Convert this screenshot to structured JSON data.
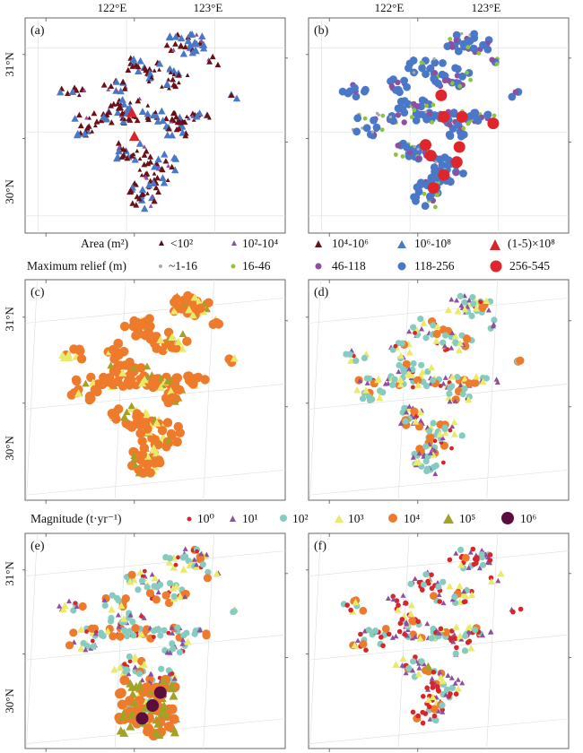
{
  "panels": [
    {
      "id": "a",
      "label": "(a)",
      "scheme": "area"
    },
    {
      "id": "b",
      "label": "(b)",
      "scheme": "relief"
    },
    {
      "id": "c",
      "label": "(c)",
      "scheme": "magA"
    },
    {
      "id": "d",
      "label": "(d)",
      "scheme": "magB"
    },
    {
      "id": "e",
      "label": "(e)",
      "scheme": "magC"
    },
    {
      "id": "f",
      "label": "(f)",
      "scheme": "magD"
    }
  ],
  "axes": {
    "lon_ticks": [
      "122°E",
      "123°E"
    ],
    "lat_ticks": [
      "31°N",
      "30°N"
    ]
  },
  "legend_area": {
    "title": "Area (m²)",
    "items": [
      {
        "label": "<10²",
        "shape": "triangle",
        "size": "small",
        "color": "#5a0f12"
      },
      {
        "label": "10²-10⁴",
        "shape": "triangle",
        "size": "small",
        "color": "#8e4fa0"
      },
      {
        "label": "10⁴-10⁶",
        "shape": "triangle",
        "size": "medium",
        "color": "#6b1016"
      },
      {
        "label": "10⁶-10⁸",
        "shape": "triangle",
        "size": "medium",
        "color": "#4a78c8"
      },
      {
        "label": "(1-5)×10⁸",
        "shape": "triangle",
        "size": "large",
        "color": "#d6262b"
      }
    ]
  },
  "legend_relief": {
    "title": "Maximum relief (m)",
    "items": [
      {
        "label": "~1-16",
        "shape": "circle",
        "size": "tiny",
        "color": "#a9a9a9"
      },
      {
        "label": "16-46",
        "shape": "circle",
        "size": "small",
        "color": "#8cc43f"
      },
      {
        "label": "46-118",
        "shape": "circle",
        "size": "medium",
        "color": "#8e4fa0"
      },
      {
        "label": "118-256",
        "shape": "circle",
        "size": "medium",
        "color": "#4a78c8"
      },
      {
        "label": "256-545",
        "shape": "circle",
        "size": "large",
        "color": "#e0262b"
      }
    ]
  },
  "legend_magnitude": {
    "title": "Magnitude (t·yr⁻¹)",
    "items": [
      {
        "label": "10⁰",
        "shape": "circle",
        "color": "#d6262b"
      },
      {
        "label": "10¹",
        "shape": "triangle",
        "color": "#8e4fa0"
      },
      {
        "label": "10²",
        "shape": "circle",
        "color": "#86cbbf"
      },
      {
        "label": "10³",
        "shape": "triangle",
        "color": "#eaea6a"
      },
      {
        "label": "10⁴",
        "shape": "circle",
        "color": "#ee7a2c"
      },
      {
        "label": "10⁵",
        "shape": "triangle",
        "color": "#a3a226"
      },
      {
        "label": "10⁶",
        "shape": "circle",
        "color": "#5b0e3d"
      }
    ]
  }
}
